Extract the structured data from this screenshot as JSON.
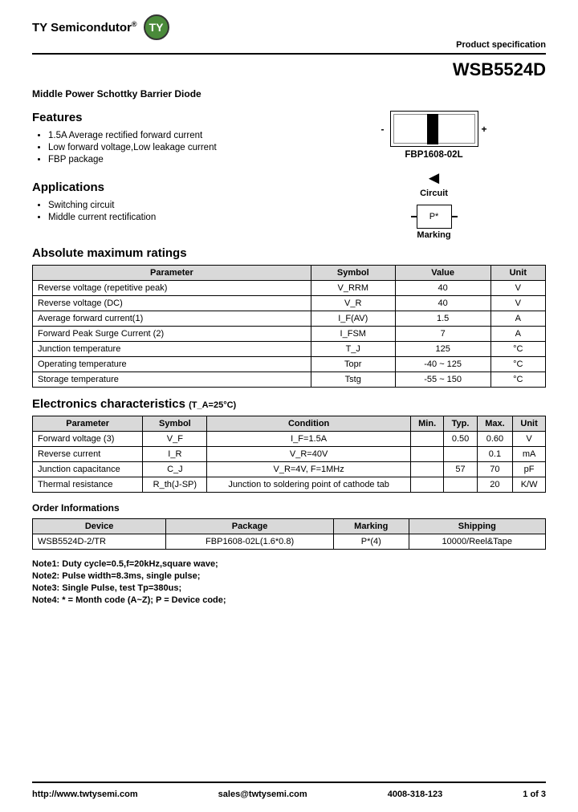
{
  "header": {
    "company": "TY Semicondutor",
    "spec_label": "Product specification"
  },
  "part_number": "WSB5524D",
  "subtitle": "Middle Power Schottky Barrier Diode",
  "features": {
    "heading": "Features",
    "items": [
      "1.5A Average rectified forward current",
      "Low forward voltage,Low leakage current",
      "FBP package"
    ]
  },
  "applications": {
    "heading": "Applications",
    "items": [
      "Switching circuit",
      "Middle current rectification"
    ]
  },
  "package": {
    "label": "FBP1608-02L",
    "circuit": "Circuit",
    "marking_text": "P*",
    "marking_label": "Marking"
  },
  "abs_max": {
    "heading": "Absolute maximum ratings",
    "headers": [
      "Parameter",
      "Symbol",
      "Value",
      "Unit"
    ],
    "header_bg": "#d9d9d9",
    "rows": [
      [
        "Reverse voltage (repetitive peak)",
        "V_RRM",
        "40",
        "V"
      ],
      [
        "Reverse voltage (DC)",
        "V_R",
        "40",
        "V"
      ],
      [
        "Average forward current(1)",
        "I_F(AV)",
        "1.5",
        "A"
      ],
      [
        "Forward Peak Surge Current (2)",
        "I_FSM",
        "7",
        "A"
      ],
      [
        "Junction temperature",
        "T_J",
        "125",
        "°C"
      ],
      [
        "Operating temperature",
        "Topr",
        "-40 ~ 125",
        "°C"
      ],
      [
        "Storage temperature",
        "Tstg",
        "-55 ~ 150",
        "°C"
      ]
    ]
  },
  "elec": {
    "heading": "Electronics characteristics",
    "cond": "(T_A=25°C)",
    "headers": [
      "Parameter",
      "Symbol",
      "Condition",
      "Min.",
      "Typ.",
      "Max.",
      "Unit"
    ],
    "rows": [
      [
        "Forward voltage (3)",
        "V_F",
        "I_F=1.5A",
        "",
        "0.50",
        "0.60",
        "V"
      ],
      [
        "Reverse current",
        "I_R",
        "V_R=40V",
        "",
        "",
        "0.1",
        "mA"
      ],
      [
        "Junction capacitance",
        "C_J",
        "V_R=4V, F=1MHz",
        "",
        "57",
        "70",
        "pF"
      ],
      [
        "Thermal resistance",
        "R_th(J-SP)",
        "Junction to soldering point of cathode tab",
        "",
        "",
        "20",
        "K/W"
      ]
    ]
  },
  "order": {
    "heading": "Order Informations",
    "headers": [
      "Device",
      "Package",
      "Marking",
      "Shipping"
    ],
    "rows": [
      [
        "WSB5524D-2/TR",
        "FBP1608-02L(1.6*0.8)",
        "P*(4)",
        "10000/Reel&Tape"
      ]
    ]
  },
  "notes": [
    "Note1: Duty cycle=0.5,f=20kHz,square wave;",
    "Note2: Pulse width=8.3ms, single pulse;",
    "Note3: Single Pulse, test Tp=380us;",
    "Note4: * = Month code (A~Z); P = Device code;"
  ],
  "footer": {
    "url": "http://www.twtysemi.com",
    "email": "sales@twtysemi.com",
    "phone": "4008-318-123",
    "page": "1 of 3"
  },
  "style": {
    "font": "Arial",
    "header_bg": "#d9d9d9",
    "border": "#000000",
    "logo_bg": "#4a8a3a"
  }
}
